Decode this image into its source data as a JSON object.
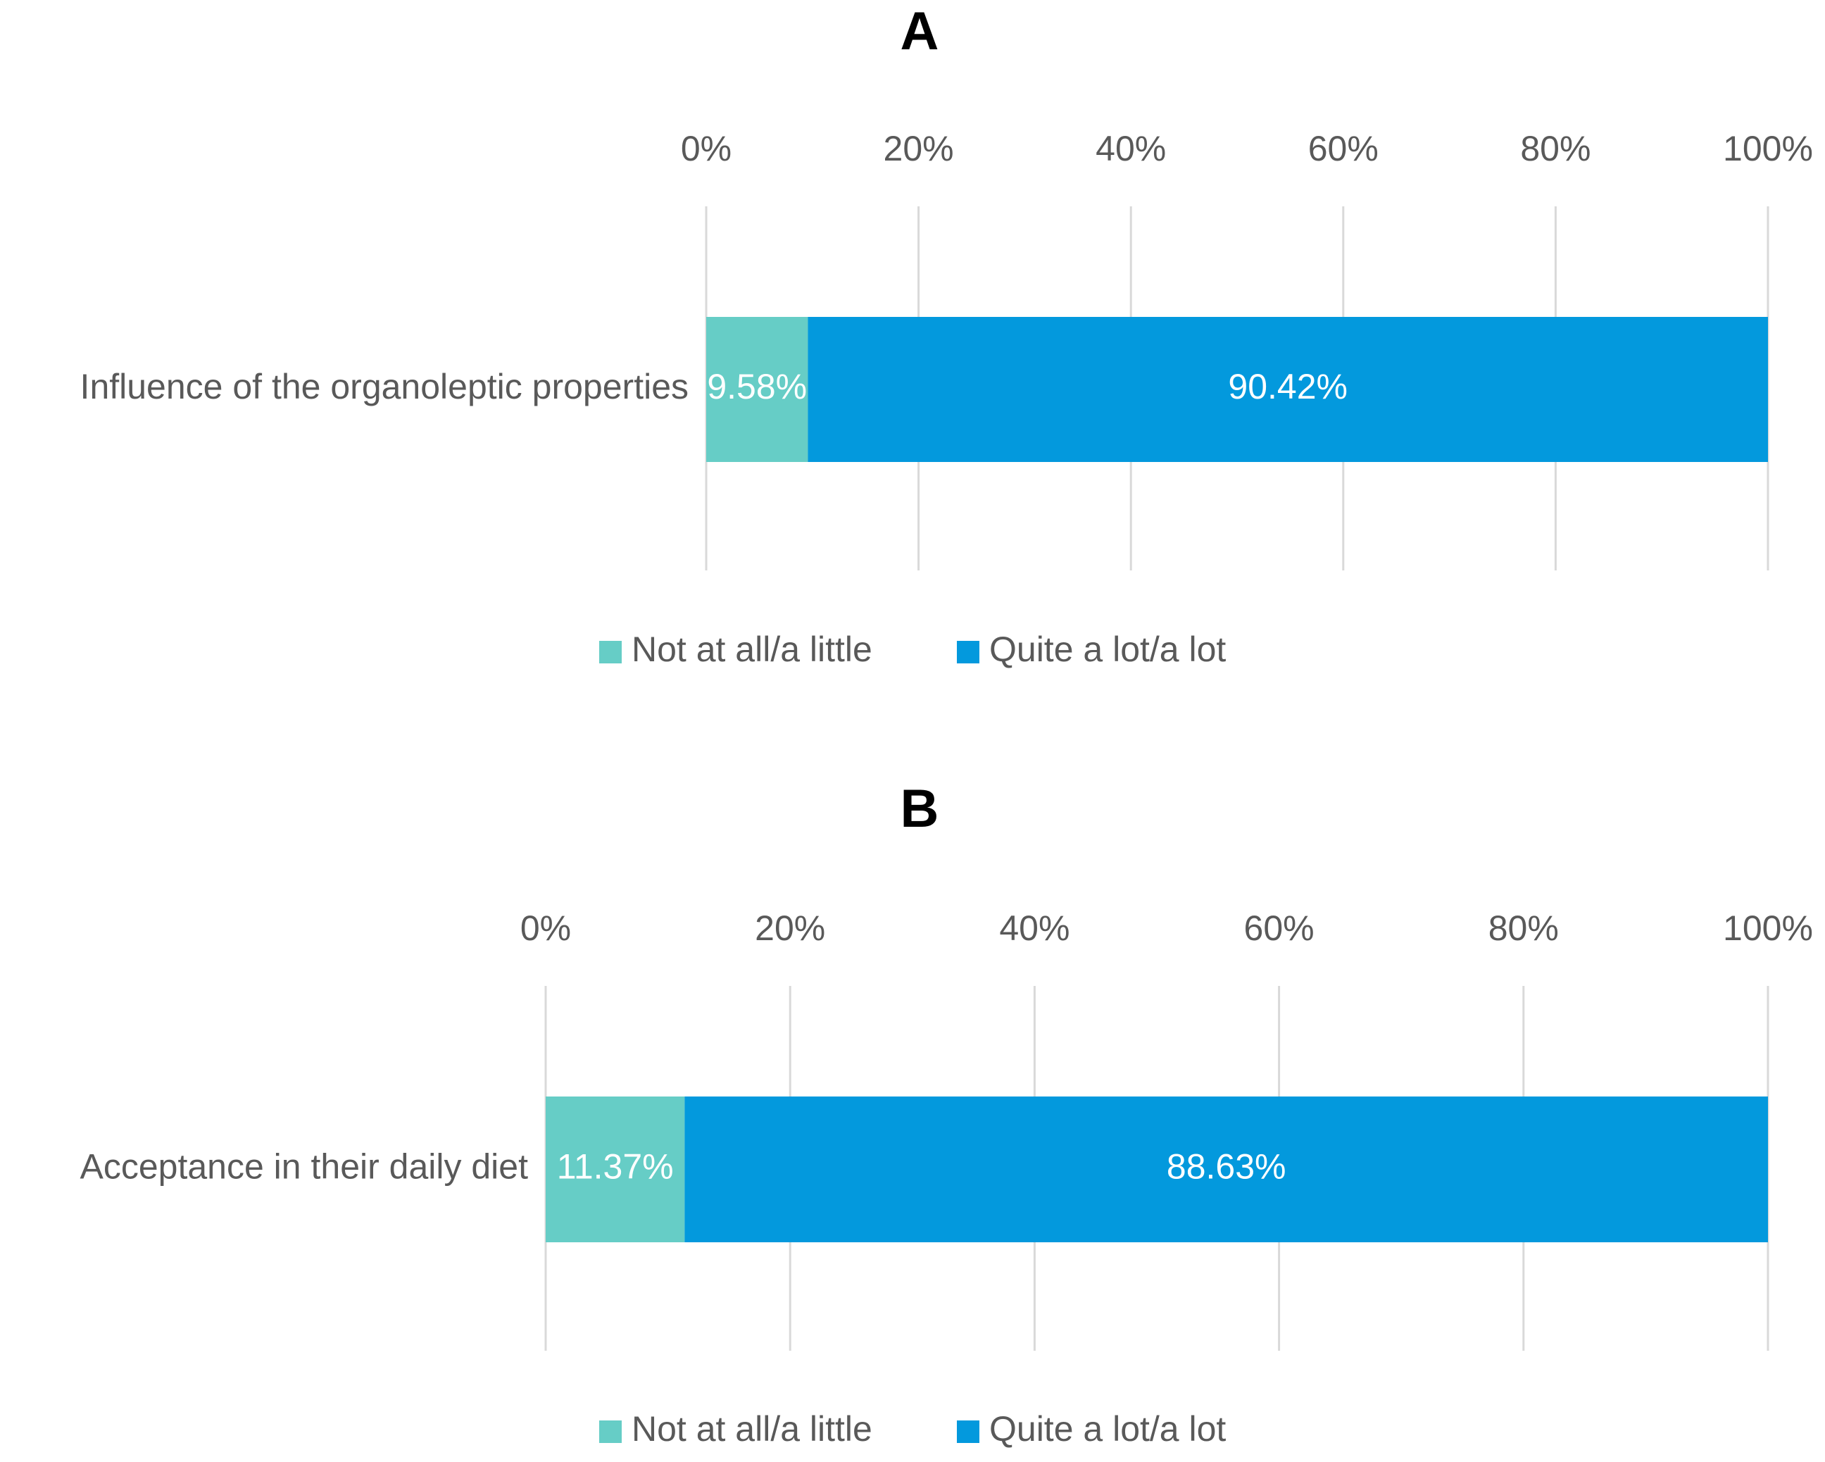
{
  "chart_data": [
    {
      "type": "bar",
      "orientation": "horizontal",
      "stacked": true,
      "title": "A",
      "categories": [
        "Influence of the organoleptic properties"
      ],
      "series": [
        {
          "name": "Not at all/a little",
          "color": "#66cdc6",
          "values": [
            9.58
          ],
          "value_labels": [
            "9.58%"
          ]
        },
        {
          "name": "Quite a lot/a lot",
          "color": "#0399dd",
          "values": [
            90.42
          ],
          "value_labels": [
            "90.42%"
          ]
        }
      ],
      "xlim": [
        0,
        100
      ],
      "xticks": [
        {
          "value": 0,
          "label": "0%"
        },
        {
          "value": 20,
          "label": "20%"
        },
        {
          "value": 40,
          "label": "40%"
        },
        {
          "value": 60,
          "label": "60%"
        },
        {
          "value": 80,
          "label": "80%"
        },
        {
          "value": 100,
          "label": "100%"
        }
      ],
      "grid": true,
      "legend": "bottom"
    },
    {
      "type": "bar",
      "orientation": "horizontal",
      "stacked": true,
      "title": "B",
      "categories": [
        "Acceptance in their daily diet"
      ],
      "series": [
        {
          "name": "Not at all/a little",
          "color": "#66cdc6",
          "values": [
            11.37
          ],
          "value_labels": [
            "11.37%"
          ]
        },
        {
          "name": "Quite a lot/a lot",
          "color": "#0399dd",
          "values": [
            88.63
          ],
          "value_labels": [
            "88.63%"
          ]
        }
      ],
      "xlim": [
        0,
        100
      ],
      "xticks": [
        {
          "value": 0,
          "label": "0%"
        },
        {
          "value": 20,
          "label": "20%"
        },
        {
          "value": 40,
          "label": "40%"
        },
        {
          "value": 60,
          "label": "60%"
        },
        {
          "value": 80,
          "label": "80%"
        },
        {
          "value": 100,
          "label": "100%"
        }
      ],
      "grid": true,
      "legend": "bottom"
    }
  ]
}
